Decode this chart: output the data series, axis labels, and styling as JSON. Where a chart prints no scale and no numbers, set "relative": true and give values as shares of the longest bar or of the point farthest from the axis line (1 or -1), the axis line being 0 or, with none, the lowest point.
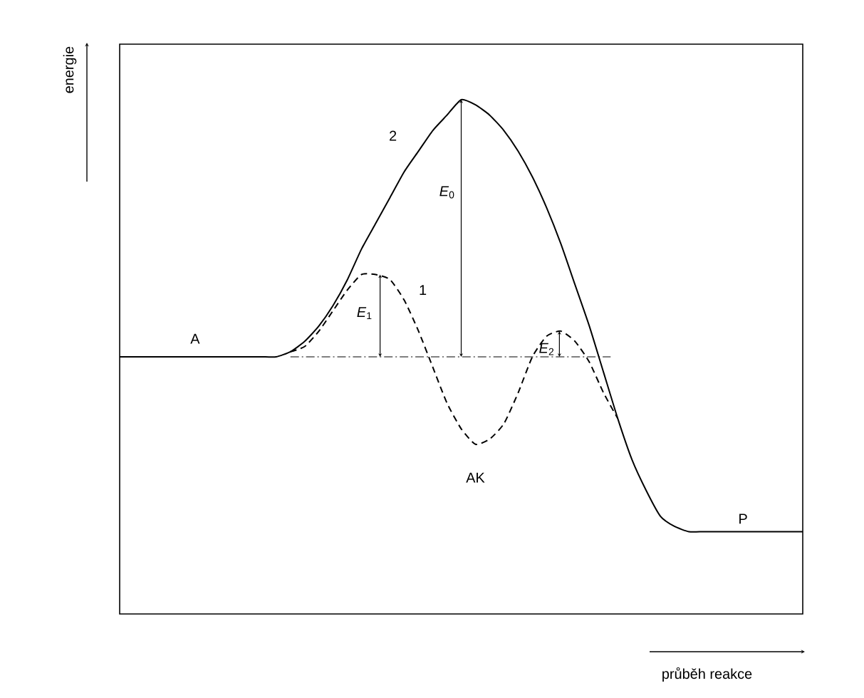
{
  "chart_data": {
    "type": "line",
    "relative": true,
    "xlabel": "průběh reakce",
    "ylabel": "energie",
    "categories": [
      null,
      null,
      null,
      null,
      null,
      null,
      null,
      null,
      null,
      null,
      null,
      null,
      null,
      null,
      null,
      null,
      null,
      null,
      null,
      null,
      null,
      null,
      null,
      null,
      null,
      null,
      null,
      null,
      null,
      null,
      null,
      null,
      null,
      null,
      null,
      null,
      null,
      null,
      null,
      null,
      null,
      null,
      null,
      null,
      null,
      null,
      null,
      null,
      null
    ],
    "series": [
      {
        "name": "2",
        "color": "#000000",
        "line_style": "solid",
        "values": [
          0.5,
          0.5,
          0.5,
          0.5,
          0.5,
          0.5,
          0.5,
          0.5,
          0.5,
          0.5,
          0.5,
          0.5,
          0.51,
          0.53,
          0.56,
          0.6,
          0.65,
          0.71,
          0.76,
          0.81,
          0.86,
          0.9,
          0.94,
          0.97,
          1.0,
          0.99,
          0.97,
          0.94,
          0.9,
          0.85,
          0.79,
          0.72,
          0.64,
          0.56,
          0.47,
          0.38,
          0.3,
          0.24,
          0.19,
          0.17,
          0.16,
          0.16,
          0.16,
          0.16,
          0.16,
          0.16,
          0.16,
          0.16,
          0.16
        ]
      },
      {
        "name": "1",
        "color": "#000000",
        "line_style": "dashed",
        "values": [
          null,
          null,
          null,
          null,
          null,
          null,
          null,
          null,
          null,
          null,
          null,
          null,
          0.51,
          0.52,
          0.55,
          0.59,
          0.63,
          0.66,
          0.66,
          0.65,
          0.61,
          0.55,
          0.48,
          0.41,
          0.36,
          0.33,
          0.34,
          0.37,
          0.43,
          0.5,
          0.54,
          0.55,
          0.53,
          0.49,
          0.43,
          0.38,
          null,
          null,
          null,
          null,
          null,
          null,
          null,
          null,
          null,
          null,
          null,
          null,
          null
        ]
      }
    ],
    "ref_lines": [
      {
        "axis": "y",
        "value": 0.5,
        "color": "#000000"
      }
    ],
    "annotations": [
      "A",
      "AK",
      "P",
      "*E*$_{0}$",
      "*E*$_{1}$",
      "*E*$_{2}$"
    ],
    "legend": false
  }
}
